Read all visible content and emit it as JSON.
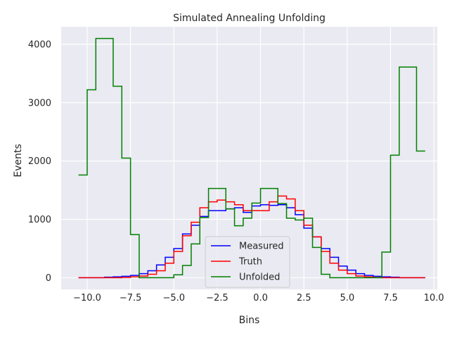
{
  "chart_data": {
    "type": "line",
    "step": true,
    "title": "Simulated Annealing Unfolding",
    "xlabel": "Bins",
    "ylabel": "Events",
    "xlim": [
      -11.5,
      10.2
    ],
    "ylim": [
      -200,
      4300
    ],
    "xticks": [
      -10.0,
      -7.5,
      -5.0,
      -2.5,
      0.0,
      2.5,
      5.0,
      7.5,
      10.0
    ],
    "xtick_labels": [
      "−10.0",
      "−7.5",
      "−5.0",
      "−2.5",
      "0.0",
      "2.5",
      "5.0",
      "7.5",
      "10.0"
    ],
    "yticks": [
      0,
      1000,
      2000,
      3000,
      4000
    ],
    "ytick_labels": [
      "0",
      "1000",
      "2000",
      "3000",
      "4000"
    ],
    "grid": true,
    "background": "#eaeaf2",
    "legend_position": "lower center",
    "bin_edges": [
      -10.5,
      -10.0,
      -9.5,
      -9.0,
      -8.5,
      -8.0,
      -7.5,
      -7.0,
      -6.5,
      -6.0,
      -5.5,
      -5.0,
      -4.5,
      -4.0,
      -3.5,
      -3.0,
      -2.5,
      -2.0,
      -1.5,
      -1.0,
      -0.5,
      0.0,
      0.5,
      1.0,
      1.5,
      2.0,
      2.5,
      3.0,
      3.5,
      4.0,
      4.5,
      5.0,
      5.5,
      6.0,
      6.5,
      7.0,
      7.5,
      8.0,
      8.5,
      9.0,
      9.5
    ],
    "series": [
      {
        "name": "Measured",
        "color": "#0000ff",
        "values": [
          0,
          0,
          0,
          10,
          15,
          25,
          40,
          70,
          120,
          220,
          350,
          500,
          750,
          900,
          1050,
          1150,
          1150,
          1180,
          1200,
          1120,
          1230,
          1250,
          1240,
          1250,
          1200,
          1080,
          850,
          700,
          500,
          350,
          200,
          130,
          70,
          40,
          25,
          15,
          10,
          0,
          0,
          0
        ]
      },
      {
        "name": "Truth",
        "color": "#ff0000",
        "values": [
          0,
          0,
          0,
          0,
          0,
          5,
          15,
          30,
          60,
          120,
          250,
          450,
          720,
          950,
          1200,
          1300,
          1330,
          1300,
          1250,
          1150,
          1150,
          1150,
          1300,
          1400,
          1350,
          1150,
          900,
          700,
          450,
          250,
          130,
          70,
          30,
          15,
          5,
          0,
          0,
          0,
          0,
          0
        ]
      },
      {
        "name": "Unfolded",
        "color": "#008000",
        "values": [
          1760,
          3220,
          4100,
          4100,
          3280,
          2050,
          740,
          0,
          0,
          0,
          0,
          50,
          210,
          580,
          1030,
          1530,
          1530,
          1180,
          890,
          1020,
          1280,
          1530,
          1530,
          1270,
          1020,
          990,
          1020,
          520,
          60,
          0,
          0,
          0,
          0,
          0,
          0,
          440,
          2100,
          3610,
          3610,
          2170
        ]
      }
    ]
  }
}
